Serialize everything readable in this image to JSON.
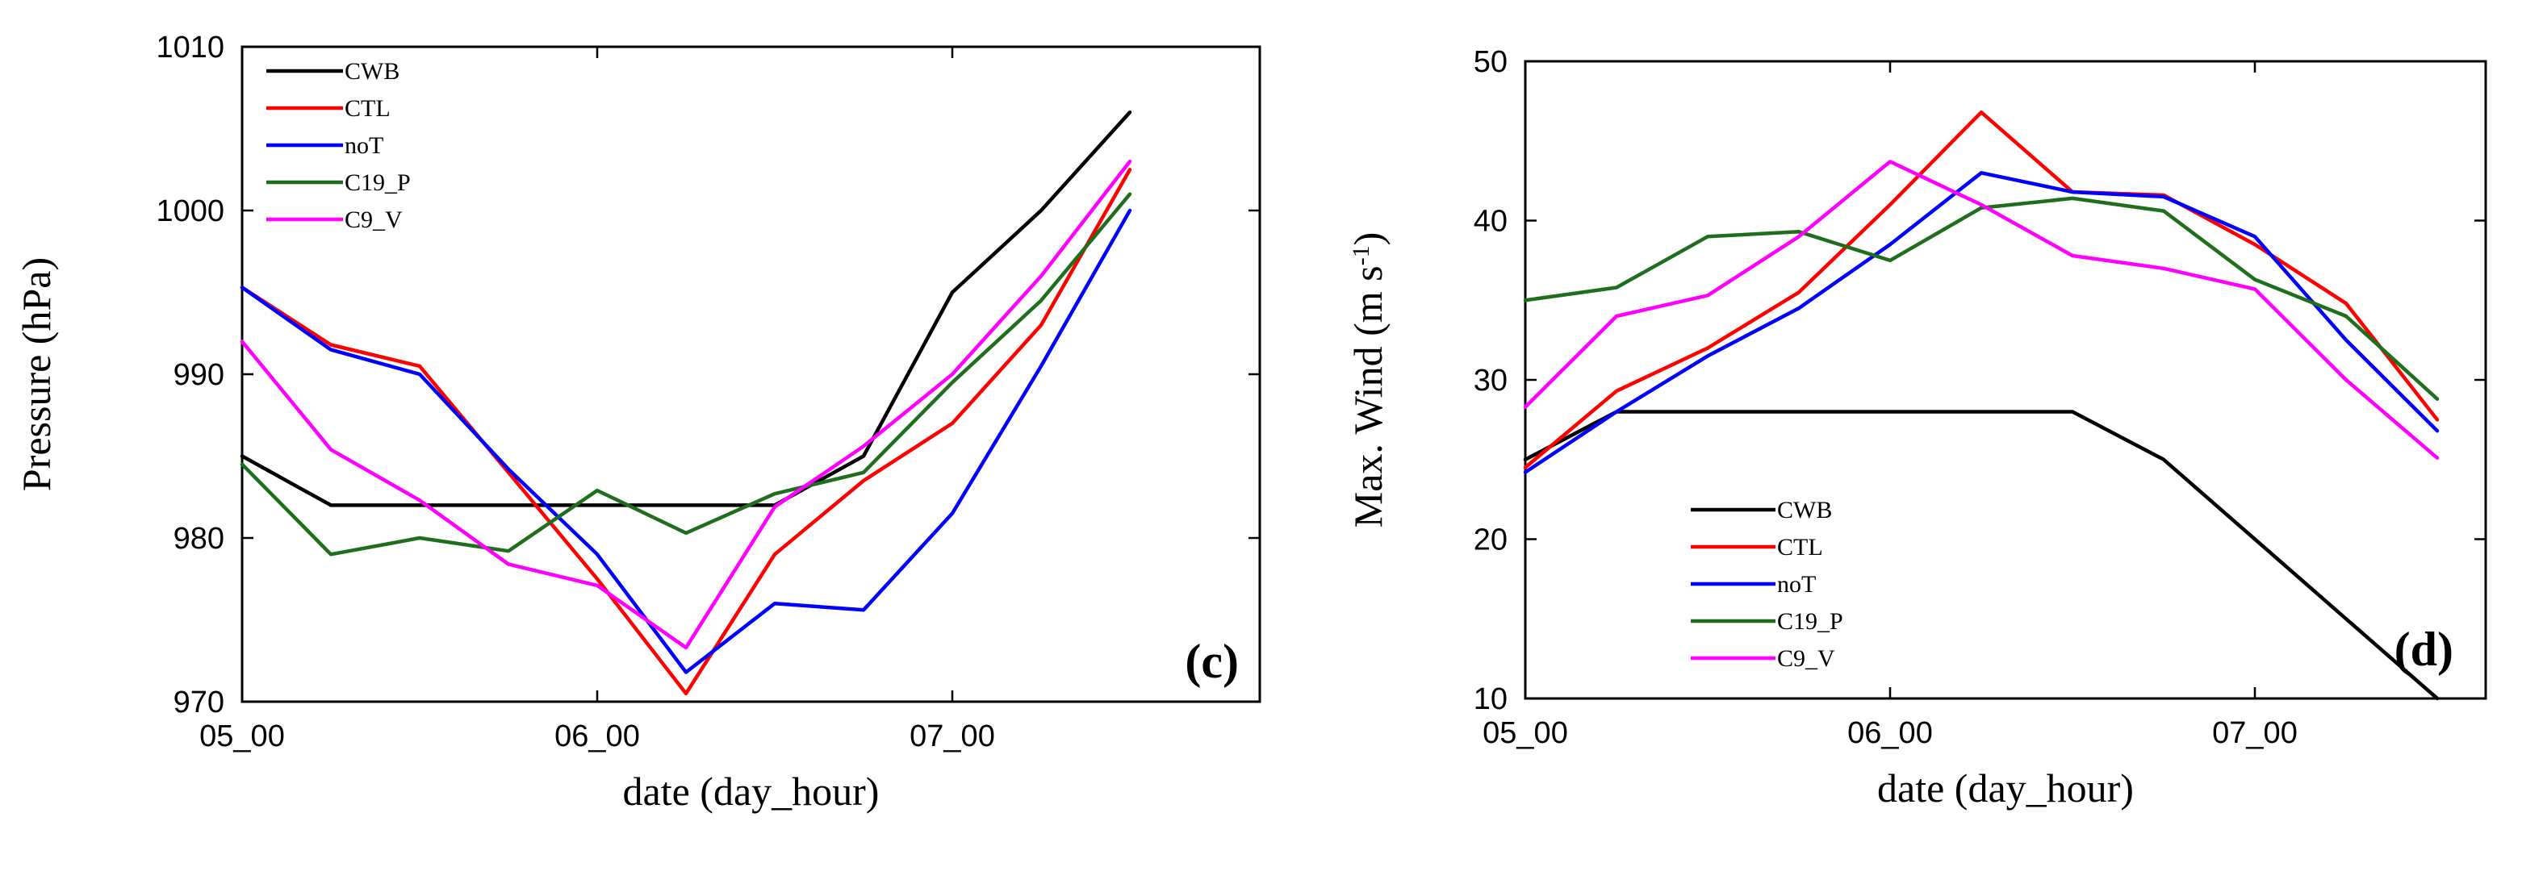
{
  "colors": {
    "CWB": "#000000",
    "CTL": "#ff0000",
    "noT": "#0000ff",
    "C19_P": "#1e6e1e",
    "C9_V": "#ff00ff"
  },
  "chart_data": [
    {
      "type": "line",
      "panel_label": "(c)",
      "xlabel": "date (day_hour)",
      "ylabel": "Pressure (hPa)",
      "ylim": [
        970,
        1010
      ],
      "yticks": [
        970,
        980,
        990,
        1000,
        1010
      ],
      "x": [
        0,
        6,
        12,
        18,
        24,
        30,
        36,
        42,
        48,
        54,
        60
      ],
      "xlim": [
        0,
        60
      ],
      "xticks": [
        {
          "value": 0,
          "label": "05_00"
        },
        {
          "value": 24,
          "label": "06_00"
        },
        {
          "value": 48,
          "label": "07_00"
        }
      ],
      "legend_position": "top-left",
      "grid": false,
      "series": [
        {
          "name": "CWB",
          "values": [
            985,
            982,
            982,
            982,
            982,
            982,
            982,
            985,
            995,
            1000,
            1006
          ]
        },
        {
          "name": "CTL",
          "values": [
            995.3,
            991.8,
            990.5,
            984,
            977.5,
            970.5,
            979,
            983.5,
            987,
            993,
            1002.5
          ]
        },
        {
          "name": "noT",
          "values": [
            995.3,
            991.5,
            990,
            984.2,
            979,
            971.8,
            976,
            975.6,
            981.5,
            990.5,
            1000
          ]
        },
        {
          "name": "C19_P",
          "values": [
            984.5,
            979,
            980,
            979.2,
            982.9,
            980.3,
            982.7,
            984,
            989.5,
            994.5,
            1001
          ]
        },
        {
          "name": "C9_V",
          "values": [
            992,
            985.4,
            982.3,
            978.4,
            977.1,
            973.3,
            981.9,
            985.6,
            990,
            996,
            1003
          ]
        }
      ]
    },
    {
      "type": "line",
      "panel_label": "(d)",
      "xlabel": "date (day_hour)",
      "ylabel": "Max. Wind (m s",
      "ylabel_sup": "-1",
      "ylabel_end": ")",
      "ylim": [
        10,
        50
      ],
      "yticks": [
        10,
        20,
        30,
        40,
        50
      ],
      "x": [
        0,
        6,
        12,
        18,
        24,
        30,
        36,
        42,
        48,
        54,
        60
      ],
      "xlim": [
        0,
        60
      ],
      "xticks": [
        {
          "value": 0,
          "label": "05_00"
        },
        {
          "value": 24,
          "label": "06_00"
        },
        {
          "value": 48,
          "label": "07_00"
        }
      ],
      "legend_position": "bottom-left",
      "grid": false,
      "series": [
        {
          "name": "CWB",
          "values": [
            25,
            28,
            28,
            28,
            28,
            28,
            28,
            25,
            20,
            15,
            10
          ]
        },
        {
          "name": "CTL",
          "values": [
            24.5,
            29.3,
            32,
            35.5,
            41,
            46.8,
            41.8,
            41.6,
            38.5,
            34.8,
            27.5
          ]
        },
        {
          "name": "noT",
          "values": [
            24.2,
            28,
            31.5,
            34.5,
            38.5,
            43,
            41.8,
            41.5,
            39,
            32.5,
            26.8
          ]
        },
        {
          "name": "C19_P",
          "values": [
            35,
            35.8,
            39,
            39.3,
            37.5,
            40.8,
            41.4,
            40.6,
            36.3,
            34,
            28.8
          ]
        },
        {
          "name": "C9_V",
          "values": [
            28.3,
            34,
            35.3,
            39,
            43.7,
            41,
            37.8,
            37,
            35.7,
            30,
            25.1
          ]
        }
      ]
    }
  ]
}
